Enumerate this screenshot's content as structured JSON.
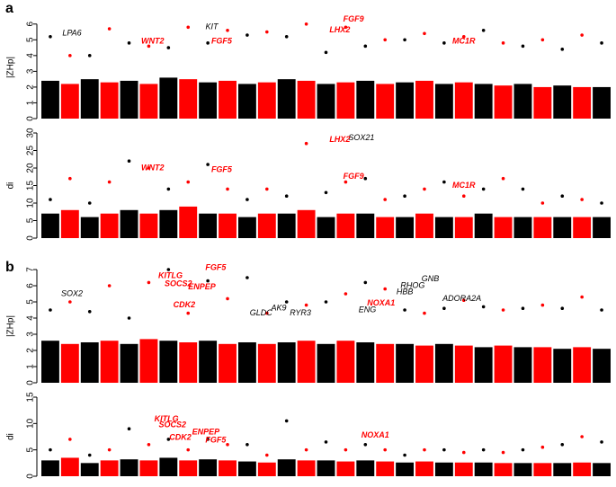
{
  "chart_data": [
    {
      "type": "manhattan",
      "label": "a",
      "ylabel": "|ZHp|",
      "ylim": [
        0,
        6.5
      ],
      "yticks": [
        0,
        1,
        2,
        3,
        4,
        5,
        6
      ],
      "colors": [
        "#000000",
        "#ff0000"
      ],
      "values": [
        5.2,
        4,
        4,
        5.7,
        4.8,
        4.6,
        4.5,
        5.8,
        4.8,
        5.6,
        5.3,
        5.5,
        5.2,
        6.0,
        4.2,
        5.8,
        4.6,
        5,
        5,
        5.4,
        4.8,
        5.2,
        5.6,
        4.8,
        4.6,
        5,
        4.4,
        5.3,
        4.8
      ],
      "cloud": [
        2.4,
        2.2,
        2.5,
        2.3,
        2.4,
        2.2,
        2.6,
        2.5,
        2.3,
        2.4,
        2.2,
        2.3,
        2.5,
        2.4,
        2.2,
        2.3,
        2.4,
        2.2,
        2.3,
        2.4,
        2.2,
        2.3,
        2.2,
        2.1,
        2.2,
        2.0,
        2.1,
        2.0,
        2.0
      ],
      "annotations": [
        {
          "text": "LPA6",
          "x": 1.6,
          "y": 5.4,
          "color": "#000000"
        },
        {
          "text": "WNT2",
          "x": 5.7,
          "y": 4.9,
          "color": "#ff0000"
        },
        {
          "text": "KIT",
          "x": 8.7,
          "y": 5.8,
          "color": "#000000"
        },
        {
          "text": "FGF5",
          "x": 9.2,
          "y": 4.9,
          "color": "#ff0000"
        },
        {
          "text": "LHX2",
          "x": 15.2,
          "y": 5.6,
          "color": "#ff0000"
        },
        {
          "text": "FGF9",
          "x": 15.9,
          "y": 6.3,
          "color": "#ff0000"
        },
        {
          "text": "MC1R",
          "x": 21.5,
          "y": 4.9,
          "color": "#ff0000"
        }
      ]
    },
    {
      "type": "manhattan",
      "ylabel": "di",
      "ylim": [
        0,
        30
      ],
      "yticks": [
        0,
        5,
        10,
        15,
        20,
        25,
        30
      ],
      "colors": [
        "#000000",
        "#ff0000"
      ],
      "values": [
        11,
        17,
        10,
        16,
        22,
        20,
        14,
        16,
        21,
        14,
        11,
        14,
        12,
        27,
        13,
        16,
        17,
        11,
        12,
        14,
        16,
        12,
        14,
        17,
        14,
        10,
        12,
        11,
        10
      ],
      "cloud": [
        7,
        8,
        6,
        7,
        8,
        7,
        8,
        9,
        7,
        7,
        6,
        7,
        7,
        8,
        6,
        7,
        7,
        6,
        6,
        7,
        6,
        6,
        7,
        6,
        6,
        6,
        6,
        6,
        6
      ],
      "annotations": [
        {
          "text": "WNT2",
          "x": 5.7,
          "y": 20,
          "color": "#ff0000"
        },
        {
          "text": "FGF5",
          "x": 9.2,
          "y": 19.5,
          "color": "#ff0000"
        },
        {
          "text": "LHX2",
          "x": 15.2,
          "y": 28,
          "color": "#ff0000"
        },
        {
          "text": "SOX21",
          "x": 16.3,
          "y": 28.5,
          "color": "#000000"
        },
        {
          "text": "FGF9",
          "x": 15.9,
          "y": 17.5,
          "color": "#ff0000"
        },
        {
          "text": "MC1R",
          "x": 21.5,
          "y": 15,
          "color": "#ff0000"
        }
      ]
    },
    {
      "type": "manhattan",
      "label": "b",
      "ylabel": "|ZHp|",
      "ylim": [
        0,
        7
      ],
      "yticks": [
        0,
        1,
        2,
        3,
        4,
        5,
        6,
        7
      ],
      "colors": [
        "#000000",
        "#ff0000"
      ],
      "values": [
        4.5,
        5.0,
        4.4,
        6.0,
        4.0,
        6.2,
        7.0,
        4.3,
        6.3,
        5.2,
        6.5,
        4.3,
        5.0,
        4.8,
        5.0,
        5.5,
        6.2,
        5.8,
        4.5,
        4.3,
        4.6,
        5.1,
        4.7,
        4.5,
        4.6,
        4.8,
        4.6,
        5.3,
        4.5
      ],
      "cloud": [
        2.6,
        2.4,
        2.5,
        2.6,
        2.4,
        2.7,
        2.6,
        2.5,
        2.6,
        2.4,
        2.5,
        2.4,
        2.5,
        2.6,
        2.4,
        2.6,
        2.5,
        2.4,
        2.4,
        2.3,
        2.4,
        2.3,
        2.2,
        2.3,
        2.2,
        2.2,
        2.1,
        2.2,
        2.1
      ],
      "annotations": [
        {
          "text": "SOX2",
          "x": 1.6,
          "y": 5.5,
          "color": "#000000"
        },
        {
          "text": "KITLG",
          "x": 6.6,
          "y": 6.6,
          "color": "#ff0000"
        },
        {
          "text": "SOCS2",
          "x": 7.0,
          "y": 6.1,
          "color": "#ff0000"
        },
        {
          "text": "CDK2",
          "x": 7.3,
          "y": 4.8,
          "color": "#ff0000"
        },
        {
          "text": "ENPEP",
          "x": 8.2,
          "y": 5.9,
          "color": "#ff0000"
        },
        {
          "text": "FGF5",
          "x": 8.9,
          "y": 7.1,
          "color": "#ff0000"
        },
        {
          "text": "GLDC",
          "x": 11.2,
          "y": 4.3,
          "color": "#000000"
        },
        {
          "text": "AK9",
          "x": 12.1,
          "y": 4.6,
          "color": "#000000"
        },
        {
          "text": "RYR3",
          "x": 13.2,
          "y": 4.3,
          "color": "#000000"
        },
        {
          "text": "NOXA1",
          "x": 17.3,
          "y": 4.9,
          "color": "#ff0000"
        },
        {
          "text": "ENG",
          "x": 16.6,
          "y": 4.5,
          "color": "#000000"
        },
        {
          "text": "HBB",
          "x": 18.5,
          "y": 5.6,
          "color": "#000000"
        },
        {
          "text": "RHOG",
          "x": 18.9,
          "y": 6.0,
          "color": "#000000"
        },
        {
          "text": "GNB",
          "x": 19.8,
          "y": 6.4,
          "color": "#000000"
        },
        {
          "text": "ADORA2A",
          "x": 21.4,
          "y": 5.2,
          "color": "#000000"
        }
      ]
    },
    {
      "type": "manhattan",
      "ylabel": "di",
      "ylim": [
        0,
        15
      ],
      "yticks": [
        0,
        5,
        10,
        15
      ],
      "colors": [
        "#000000",
        "#ff0000"
      ],
      "values": [
        5,
        7,
        4,
        5,
        9,
        6,
        7,
        5,
        7,
        6,
        6,
        4,
        10.5,
        5,
        6.5,
        5,
        6,
        5,
        4,
        5,
        5,
        4.5,
        5,
        4.5,
        5,
        5.5,
        6,
        7.5,
        6.5
      ],
      "cloud": [
        3,
        3.5,
        2.5,
        3,
        3.2,
        3,
        3.5,
        3,
        3.2,
        3,
        2.8,
        2.6,
        3.2,
        3,
        3,
        2.8,
        3,
        2.8,
        2.6,
        2.8,
        2.6,
        2.6,
        2.6,
        2.5,
        2.5,
        2.5,
        2.5,
        2.6,
        2.5
      ],
      "annotations": [
        {
          "text": "KITLG",
          "x": 6.4,
          "y": 10.8,
          "color": "#ff0000"
        },
        {
          "text": "SOCS2",
          "x": 6.7,
          "y": 9.7,
          "color": "#ff0000"
        },
        {
          "text": "CDK2",
          "x": 7.1,
          "y": 7.3,
          "color": "#ff0000"
        },
        {
          "text": "ENPEP",
          "x": 8.4,
          "y": 8.3,
          "color": "#ff0000"
        },
        {
          "text": "FGF5",
          "x": 8.9,
          "y": 6.8,
          "color": "#ff0000"
        },
        {
          "text": "NOXA1",
          "x": 17.0,
          "y": 7.7,
          "color": "#ff0000"
        }
      ]
    }
  ]
}
